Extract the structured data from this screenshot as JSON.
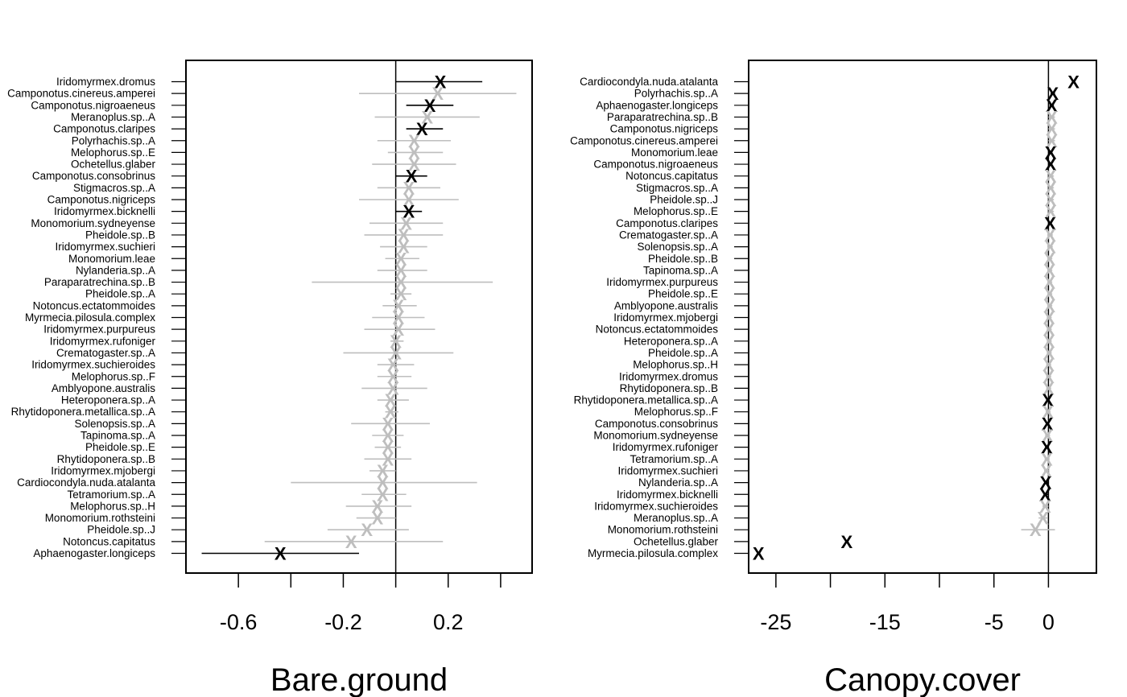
{
  "chart_data": [
    {
      "type": "scatter",
      "xlabel": "Bare.ground",
      "xlim": [
        -0.8,
        0.52
      ],
      "xticks": [
        -0.6,
        -0.4,
        -0.2,
        0.0,
        0.2,
        0.4
      ],
      "xtick_labels": [
        "-0.6",
        "",
        "-0.2",
        "",
        "0.2",
        ""
      ],
      "zero_line": 0,
      "colors": {
        "significant": "#000000",
        "nonsignificant": "#bebebe"
      },
      "species": [
        {
          "name": "Iridomyrmex.dromus",
          "est": 0.17,
          "lo": 0.0,
          "hi": 0.33,
          "sig": true
        },
        {
          "name": "Camponotus.cinereus.amperei",
          "est": 0.16,
          "lo": -0.14,
          "hi": 0.46,
          "sig": false
        },
        {
          "name": "Camponotus.nigroaeneus",
          "est": 0.13,
          "lo": 0.04,
          "hi": 0.22,
          "sig": true
        },
        {
          "name": "Meranoplus.sp..A",
          "est": 0.12,
          "lo": -0.08,
          "hi": 0.32,
          "sig": false
        },
        {
          "name": "Camponotus.claripes",
          "est": 0.1,
          "lo": 0.04,
          "hi": 0.18,
          "sig": true
        },
        {
          "name": "Polyrhachis.sp..A",
          "est": 0.07,
          "lo": -0.07,
          "hi": 0.21,
          "sig": false
        },
        {
          "name": "Melophorus.sp..E",
          "est": 0.07,
          "lo": -0.03,
          "hi": 0.18,
          "sig": false
        },
        {
          "name": "Ochetellus.glaber",
          "est": 0.07,
          "lo": -0.09,
          "hi": 0.23,
          "sig": false
        },
        {
          "name": "Camponotus.consobrinus",
          "est": 0.06,
          "lo": 0.0,
          "hi": 0.12,
          "sig": true
        },
        {
          "name": "Stigmacros.sp..A",
          "est": 0.05,
          "lo": -0.07,
          "hi": 0.17,
          "sig": false
        },
        {
          "name": "Camponotus.nigriceps",
          "est": 0.05,
          "lo": -0.14,
          "hi": 0.24,
          "sig": false
        },
        {
          "name": "Iridomyrmex.bicknelli",
          "est": 0.05,
          "lo": 0.0,
          "hi": 0.1,
          "sig": true
        },
        {
          "name": "Monomorium.sydneyense",
          "est": 0.04,
          "lo": -0.1,
          "hi": 0.18,
          "sig": false
        },
        {
          "name": "Pheidole.sp..B",
          "est": 0.03,
          "lo": -0.12,
          "hi": 0.18,
          "sig": false
        },
        {
          "name": "Iridomyrmex.suchieri",
          "est": 0.03,
          "lo": -0.06,
          "hi": 0.12,
          "sig": false
        },
        {
          "name": "Monomorium.leae",
          "est": 0.02,
          "lo": -0.04,
          "hi": 0.09,
          "sig": false
        },
        {
          "name": "Nylanderia.sp..A",
          "est": 0.02,
          "lo": -0.07,
          "hi": 0.12,
          "sig": false
        },
        {
          "name": "Paraparatrechina.sp..B",
          "est": 0.02,
          "lo": -0.32,
          "hi": 0.37,
          "sig": false
        },
        {
          "name": "Pheidole.sp..A",
          "est": 0.02,
          "lo": -0.02,
          "hi": 0.06,
          "sig": false
        },
        {
          "name": "Notoncus.ectatommoides",
          "est": 0.01,
          "lo": -0.05,
          "hi": 0.08,
          "sig": false
        },
        {
          "name": "Myrmecia.pilosula.complex",
          "est": 0.01,
          "lo": -0.09,
          "hi": 0.11,
          "sig": false
        },
        {
          "name": "Iridomyrmex.purpureus",
          "est": 0.01,
          "lo": -0.12,
          "hi": 0.15,
          "sig": false
        },
        {
          "name": "Iridomyrmex.rufoniger",
          "est": 0.0,
          "lo": -0.02,
          "hi": 0.03,
          "sig": false
        },
        {
          "name": "Crematogaster.sp..A",
          "est": 0.0,
          "lo": -0.2,
          "hi": 0.22,
          "sig": false
        },
        {
          "name": "Iridomyrmex.suchieroides",
          "est": -0.01,
          "lo": -0.07,
          "hi": 0.07,
          "sig": false
        },
        {
          "name": "Melophorus.sp..F",
          "est": -0.01,
          "lo": -0.07,
          "hi": 0.06,
          "sig": false
        },
        {
          "name": "Amblyopone.australis",
          "est": -0.01,
          "lo": -0.13,
          "hi": 0.12,
          "sig": false
        },
        {
          "name": "Heteroponera.sp..A",
          "est": -0.02,
          "lo": -0.07,
          "hi": 0.05,
          "sig": false
        },
        {
          "name": "Rhytidoponera.metallica.sp..A",
          "est": -0.02,
          "lo": -0.04,
          "hi": 0.01,
          "sig": false
        },
        {
          "name": "Solenopsis.sp..A",
          "est": -0.03,
          "lo": -0.17,
          "hi": 0.13,
          "sig": false
        },
        {
          "name": "Tapinoma.sp..A",
          "est": -0.03,
          "lo": -0.09,
          "hi": 0.03,
          "sig": false
        },
        {
          "name": "Pheidole.sp..E",
          "est": -0.03,
          "lo": -0.08,
          "hi": 0.02,
          "sig": false
        },
        {
          "name": "Rhytidoponera.sp..B",
          "est": -0.03,
          "lo": -0.12,
          "hi": 0.06,
          "sig": false
        },
        {
          "name": "Iridomyrmex.mjobergi",
          "est": -0.05,
          "lo": -0.1,
          "hi": 0.0,
          "sig": false
        },
        {
          "name": "Cardiocondyla.nuda.atalanta",
          "est": -0.05,
          "lo": -0.4,
          "hi": 0.31,
          "sig": false
        },
        {
          "name": "Tetramorium.sp..A",
          "est": -0.05,
          "lo": -0.13,
          "hi": 0.04,
          "sig": false
        },
        {
          "name": "Melophorus.sp..H",
          "est": -0.07,
          "lo": -0.19,
          "hi": 0.06,
          "sig": false
        },
        {
          "name": "Monomorium.rothsteini",
          "est": -0.07,
          "lo": -0.15,
          "hi": 0.0,
          "sig": false
        },
        {
          "name": "Pheidole.sp..J",
          "est": -0.11,
          "lo": -0.26,
          "hi": 0.05,
          "sig": false
        },
        {
          "name": "Notoncus.capitatus",
          "est": -0.17,
          "lo": -0.5,
          "hi": 0.18,
          "sig": false
        },
        {
          "name": "Aphaenogaster.longiceps",
          "est": -0.44,
          "lo": -0.74,
          "hi": -0.14,
          "sig": true
        }
      ]
    },
    {
      "type": "scatter",
      "xlabel": "Canopy.cover",
      "xlim": [
        -27.5,
        4.4
      ],
      "xticks": [
        -25,
        -20,
        -15,
        -10,
        -5,
        0
      ],
      "xtick_labels": [
        "-25",
        "",
        "-15",
        "",
        "-5",
        "0"
      ],
      "zero_line": 0,
      "colors": {
        "significant": "#000000",
        "nonsignificant": "#bebebe"
      },
      "species": [
        {
          "name": "Cardiocondyla.nuda.atalanta",
          "est": 2.3,
          "lo": 2.3,
          "hi": 2.3,
          "sig": true
        },
        {
          "name": "Polyrhachis.sp..A",
          "est": 0.4,
          "lo": 0.2,
          "hi": 0.6,
          "sig": true
        },
        {
          "name": "Aphaenogaster.longiceps",
          "est": 0.3,
          "lo": 0.1,
          "hi": 0.5,
          "sig": true
        },
        {
          "name": "Paraparatrechina.sp..B",
          "est": 0.3,
          "lo": 0.0,
          "hi": 0.6,
          "sig": false
        },
        {
          "name": "Camponotus.nigriceps",
          "est": 0.3,
          "lo": 0.0,
          "hi": 0.6,
          "sig": false
        },
        {
          "name": "Camponotus.cinereus.amperei",
          "est": 0.3,
          "lo": 0.0,
          "hi": 0.6,
          "sig": false
        },
        {
          "name": "Monomorium.leae",
          "est": 0.2,
          "lo": 0.05,
          "hi": 0.35,
          "sig": true
        },
        {
          "name": "Camponotus.nigroaeneus",
          "est": 0.2,
          "lo": 0.05,
          "hi": 0.35,
          "sig": true
        },
        {
          "name": "Notoncus.capitatus",
          "est": 0.2,
          "lo": 0.0,
          "hi": 0.5,
          "sig": false
        },
        {
          "name": "Stigmacros.sp..A",
          "est": 0.2,
          "lo": 0.0,
          "hi": 0.5,
          "sig": false
        },
        {
          "name": "Pheidole.sp..J",
          "est": 0.2,
          "lo": 0.0,
          "hi": 0.5,
          "sig": false
        },
        {
          "name": "Melophorus.sp..E",
          "est": 0.2,
          "lo": 0.0,
          "hi": 0.5,
          "sig": false
        },
        {
          "name": "Camponotus.claripes",
          "est": 0.15,
          "lo": 0.05,
          "hi": 0.3,
          "sig": true
        },
        {
          "name": "Crematogaster.sp..A",
          "est": 0.15,
          "lo": -0.05,
          "hi": 0.4,
          "sig": false
        },
        {
          "name": "Solenopsis.sp..A",
          "est": 0.15,
          "lo": -0.05,
          "hi": 0.4,
          "sig": false
        },
        {
          "name": "Pheidole.sp..B",
          "est": 0.1,
          "lo": -0.1,
          "hi": 0.35,
          "sig": false
        },
        {
          "name": "Tapinoma.sp..A",
          "est": 0.1,
          "lo": -0.1,
          "hi": 0.35,
          "sig": false
        },
        {
          "name": "Iridomyrmex.purpureus",
          "est": 0.1,
          "lo": -0.1,
          "hi": 0.35,
          "sig": false
        },
        {
          "name": "Pheidole.sp..E",
          "est": 0.1,
          "lo": -0.1,
          "hi": 0.35,
          "sig": false
        },
        {
          "name": "Amblyopone.australis",
          "est": 0.1,
          "lo": -0.1,
          "hi": 0.35,
          "sig": false
        },
        {
          "name": "Iridomyrmex.mjobergi",
          "est": 0.05,
          "lo": -0.15,
          "hi": 0.3,
          "sig": false
        },
        {
          "name": "Notoncus.ectatommoides",
          "est": 0.05,
          "lo": -0.15,
          "hi": 0.3,
          "sig": false
        },
        {
          "name": "Heteroponera.sp..A",
          "est": 0.05,
          "lo": -0.15,
          "hi": 0.3,
          "sig": false
        },
        {
          "name": "Pheidole.sp..A",
          "est": 0.05,
          "lo": -0.15,
          "hi": 0.3,
          "sig": false
        },
        {
          "name": "Melophorus.sp..H",
          "est": 0.0,
          "lo": -0.2,
          "hi": 0.25,
          "sig": false
        },
        {
          "name": "Iridomyrmex.dromus",
          "est": 0.0,
          "lo": -0.2,
          "hi": 0.25,
          "sig": false
        },
        {
          "name": "Rhytidoponera.sp..B",
          "est": 0.0,
          "lo": -0.2,
          "hi": 0.25,
          "sig": false
        },
        {
          "name": "Rhytidoponera.metallica.sp..A",
          "est": -0.05,
          "lo": -0.2,
          "hi": 0.0,
          "sig": true
        },
        {
          "name": "Melophorus.sp..F",
          "est": -0.05,
          "lo": -0.25,
          "hi": 0.2,
          "sig": false
        },
        {
          "name": "Camponotus.consobrinus",
          "est": -0.1,
          "lo": -0.25,
          "hi": 0.0,
          "sig": true
        },
        {
          "name": "Monomorium.sydneyense",
          "est": -0.1,
          "lo": -0.3,
          "hi": 0.15,
          "sig": false
        },
        {
          "name": "Iridomyrmex.rufoniger",
          "est": -0.15,
          "lo": -0.3,
          "hi": 0.0,
          "sig": true
        },
        {
          "name": "Tetramorium.sp..A",
          "est": -0.15,
          "lo": -0.35,
          "hi": 0.1,
          "sig": false
        },
        {
          "name": "Iridomyrmex.suchieri",
          "est": -0.2,
          "lo": -0.4,
          "hi": 0.05,
          "sig": false
        },
        {
          "name": "Nylanderia.sp..A",
          "est": -0.25,
          "lo": -0.4,
          "hi": 0.0,
          "sig": true
        },
        {
          "name": "Iridomyrmex.bicknelli",
          "est": -0.3,
          "lo": -0.45,
          "hi": 0.0,
          "sig": true
        },
        {
          "name": "Iridomyrmex.suchieroides",
          "est": -0.3,
          "lo": -0.55,
          "hi": 0.0,
          "sig": false
        },
        {
          "name": "Meranoplus.sp..A",
          "est": -0.5,
          "lo": -0.9,
          "hi": -0.1,
          "sig": false
        },
        {
          "name": "Monomorium.rothsteini",
          "est": -1.2,
          "lo": -2.5,
          "hi": 0.6,
          "sig": false
        },
        {
          "name": "Ochetellus.glaber",
          "est": -18.5,
          "lo": -18.5,
          "hi": -18.5,
          "sig": true
        },
        {
          "name": "Myrmecia.pilosula.complex",
          "est": -26.6,
          "lo": -26.6,
          "hi": -26.6,
          "sig": true
        }
      ]
    }
  ]
}
